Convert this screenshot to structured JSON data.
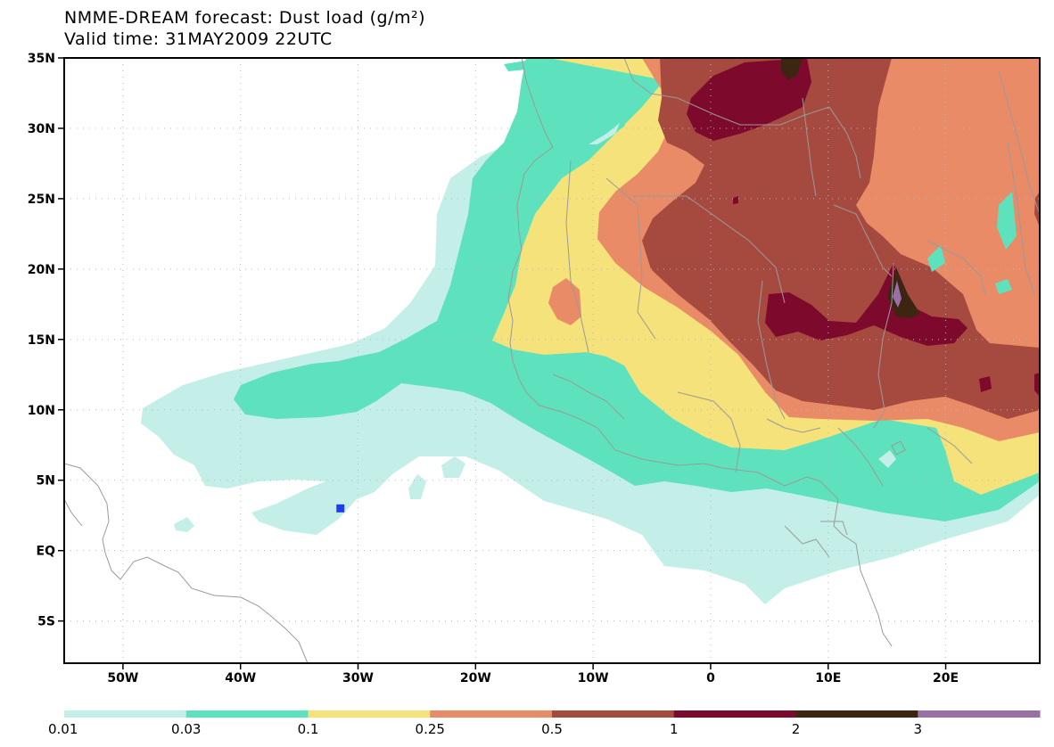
{
  "header": {
    "title": "NMME-DREAM forecast: Dust load (g/m²)",
    "subtitle": "Valid time: 31MAY2009 22UTC"
  },
  "map": {
    "lon_range": [
      -55,
      28
    ],
    "lat_range": [
      -8,
      35
    ],
    "lon_ticks": [
      {
        "value": -50,
        "label": "50W"
      },
      {
        "value": -40,
        "label": "40W"
      },
      {
        "value": -30,
        "label": "30W"
      },
      {
        "value": -20,
        "label": "20W"
      },
      {
        "value": -10,
        "label": "10W"
      },
      {
        "value": 0,
        "label": "0"
      },
      {
        "value": 10,
        "label": "10E"
      },
      {
        "value": 20,
        "label": "20E"
      }
    ],
    "lat_ticks": [
      {
        "value": 35,
        "label": "35N"
      },
      {
        "value": 30,
        "label": "30N"
      },
      {
        "value": 25,
        "label": "25N"
      },
      {
        "value": 20,
        "label": "20N"
      },
      {
        "value": 15,
        "label": "15N"
      },
      {
        "value": 10,
        "label": "10N"
      },
      {
        "value": 5,
        "label": "5N"
      },
      {
        "value": 0,
        "label": "EQ"
      },
      {
        "value": -5,
        "label": "5S"
      }
    ],
    "marker": {
      "lon": -31.5,
      "lat": 3.0,
      "color": "#1f3df0"
    }
  },
  "legend": {
    "levels": [
      "0.01",
      "0.03",
      "0.1",
      "0.25",
      "0.5",
      "1",
      "2",
      "3"
    ],
    "colors": [
      "#c4efe9",
      "#5ee2be",
      "#f5e27a",
      "#ea8b68",
      "#a64a40",
      "#7d0a2c",
      "#3c2612",
      "#9a6fa6"
    ]
  }
}
